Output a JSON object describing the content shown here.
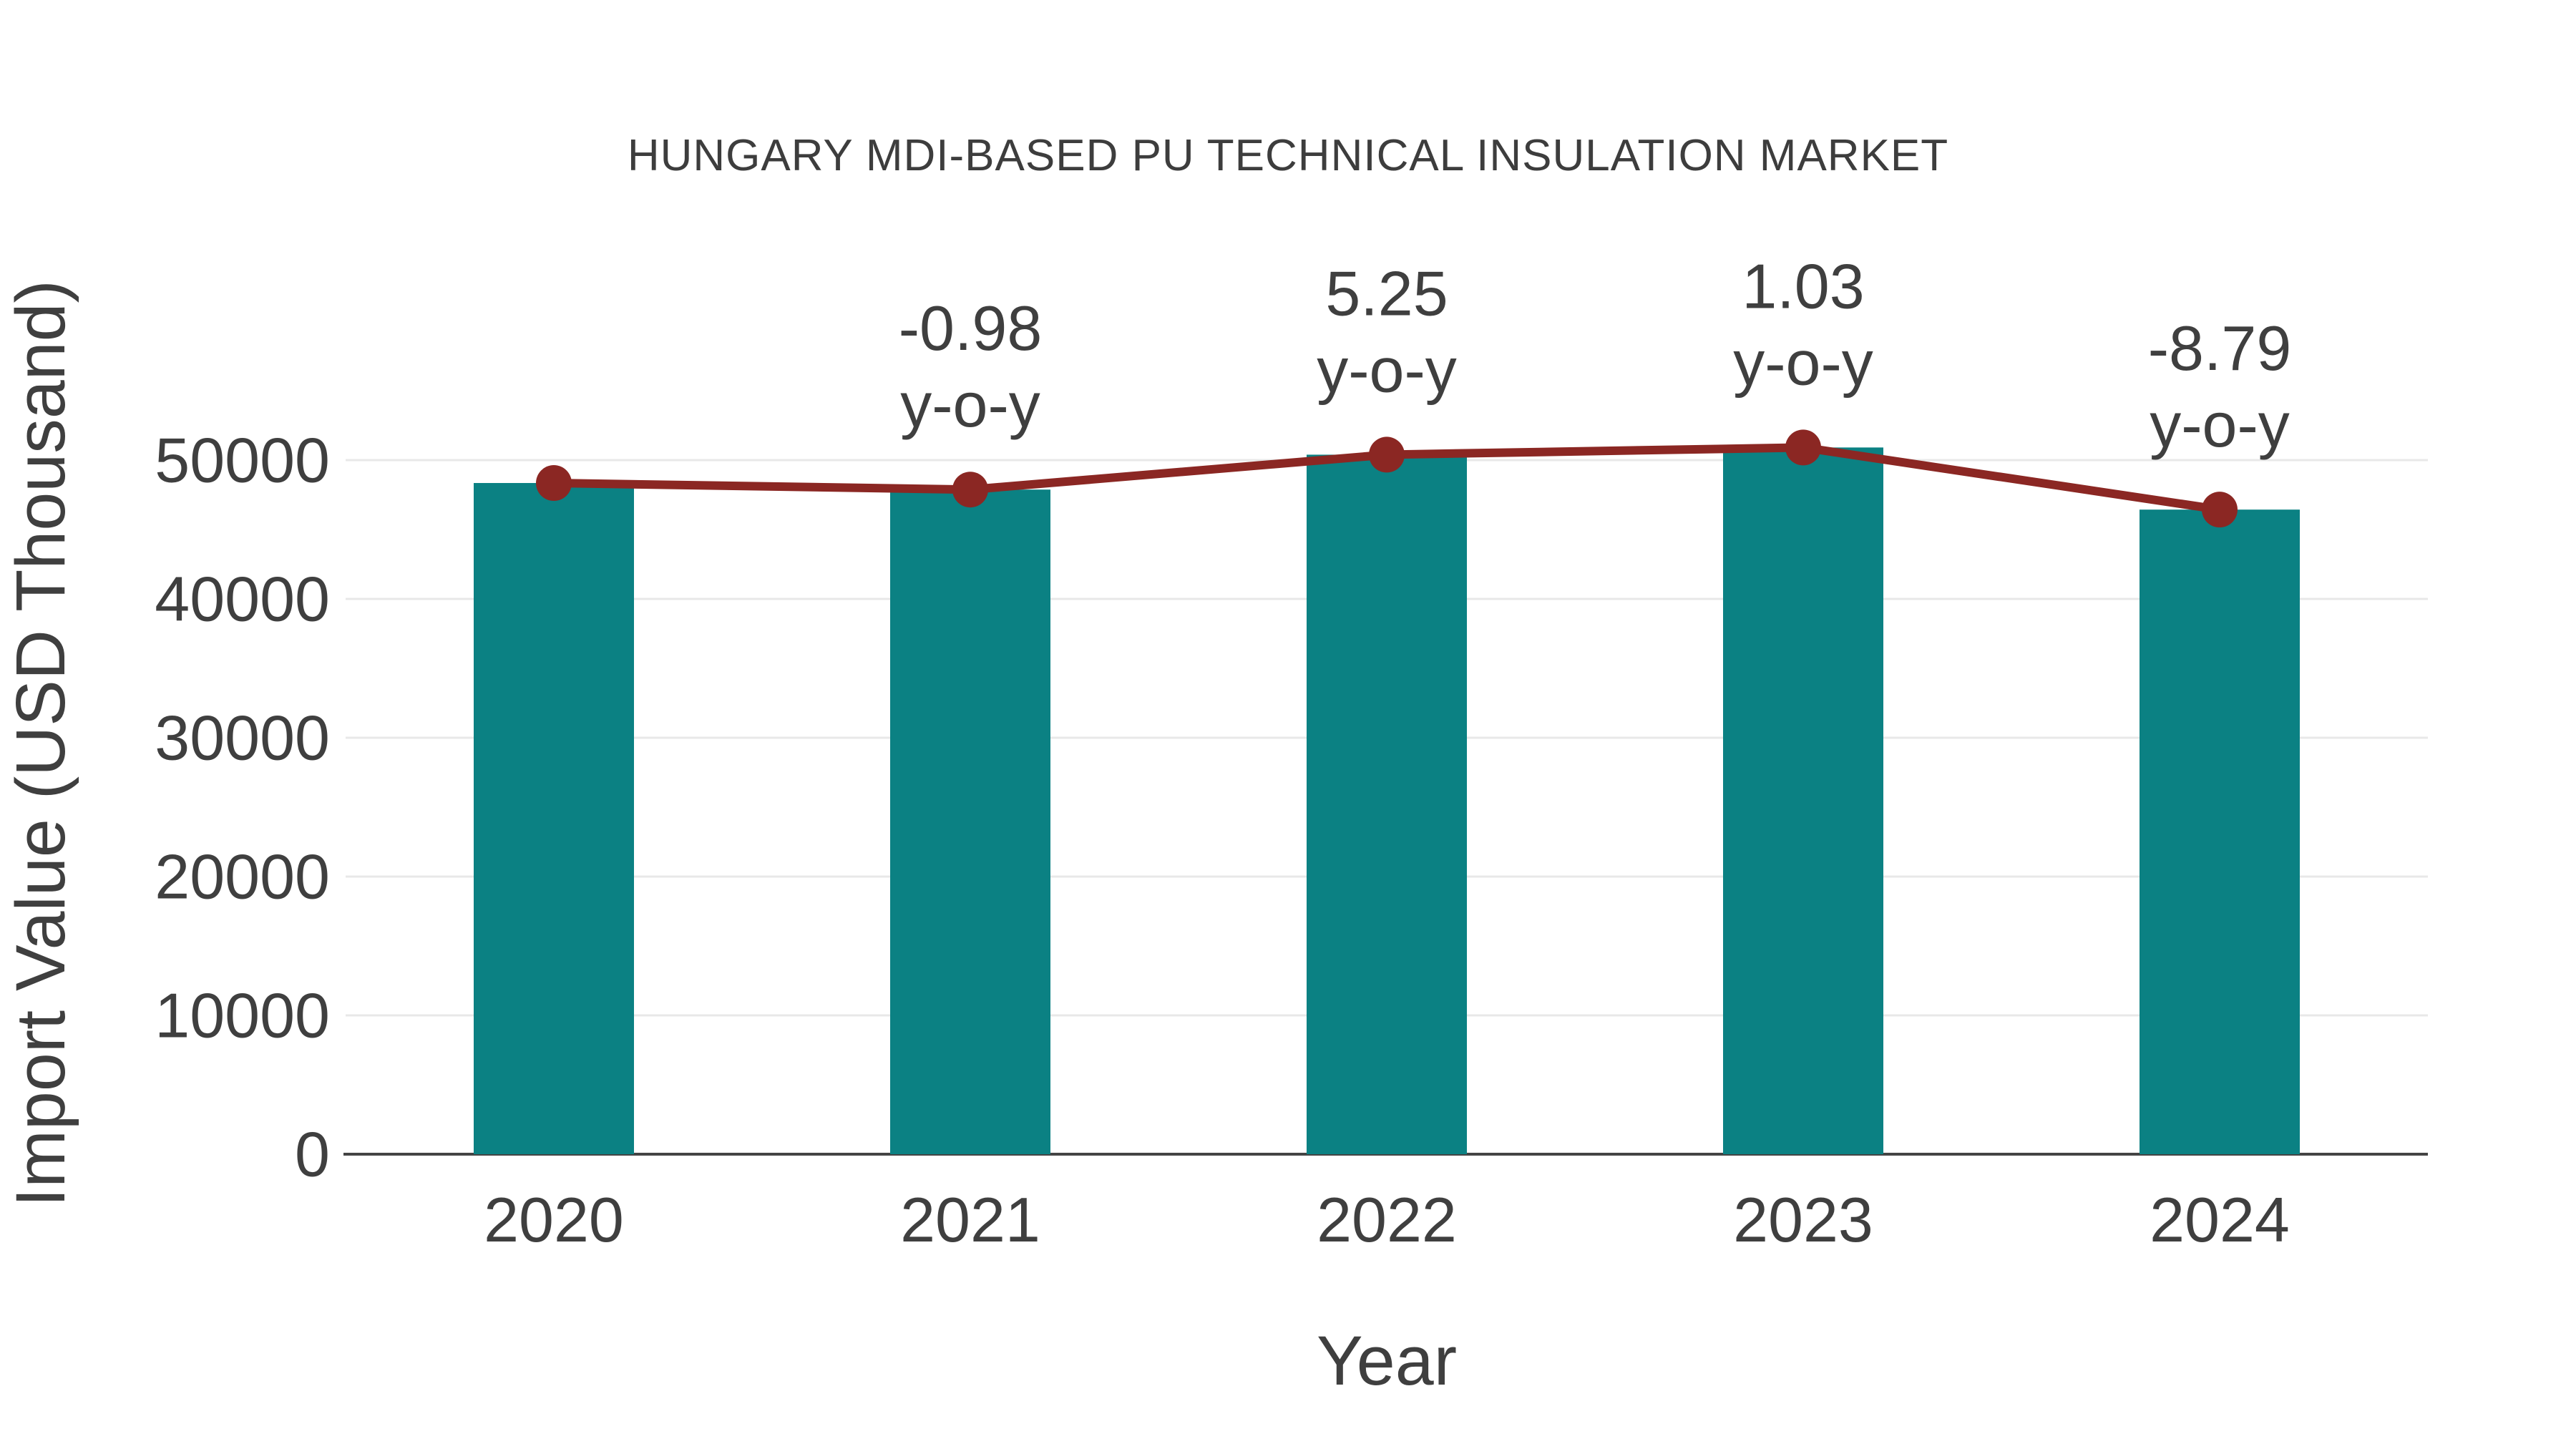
{
  "chart_data": {
    "type": "bar",
    "overlay": "line",
    "title": "HUNGARY MDI-BASED PU TECHNICAL INSULATION MARKET",
    "categories": [
      "2020",
      "2021",
      "2022",
      "2023",
      "2024"
    ],
    "series": [
      {
        "name": "import-value-bars",
        "type": "bar",
        "values": [
          48350,
          47876,
          50390,
          50909,
          46434
        ]
      },
      {
        "name": "import-value-trend",
        "type": "line",
        "values": [
          48350,
          47876,
          50390,
          50909,
          46434
        ]
      }
    ],
    "annotations": [
      {
        "category": "2021",
        "lines": [
          "-0.98",
          "y-o-y"
        ]
      },
      {
        "category": "2022",
        "lines": [
          "5.25",
          "y-o-y"
        ]
      },
      {
        "category": "2023",
        "lines": [
          "1.03",
          "y-o-y"
        ]
      },
      {
        "category": "2024",
        "lines": [
          "-8.79",
          "y-o-y"
        ]
      }
    ],
    "xlabel": "Year",
    "ylabel": "Import Value (USD Thousand)",
    "yticks": [
      0,
      10000,
      20000,
      30000,
      40000,
      50000
    ],
    "ylim": [
      0,
      59200
    ],
    "grid": true,
    "legend_position": "none",
    "colors": {
      "bar": "#0b8183",
      "line": "#8b2723",
      "text": "#3f3f3f",
      "title": "#3d3d3d",
      "grid": "#e8e8e8",
      "axis": "#444444",
      "background": "#ffffff"
    }
  }
}
